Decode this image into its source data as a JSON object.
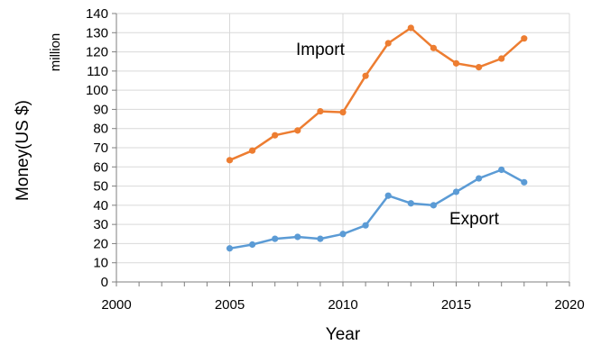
{
  "chart_data": {
    "type": "line",
    "xlabel": "Year",
    "ylabel": "Money(US $)",
    "yunit": "million",
    "xlim": [
      2000,
      2020
    ],
    "ylim": [
      0,
      140
    ],
    "xticks": [
      2000,
      2005,
      2010,
      2015,
      2020
    ],
    "yticks": [
      0,
      10,
      20,
      30,
      40,
      50,
      60,
      70,
      80,
      90,
      100,
      110,
      120,
      130,
      140
    ],
    "grid": true,
    "x": [
      2005,
      2006,
      2007,
      2008,
      2009,
      2010,
      2011,
      2012,
      2013,
      2014,
      2015,
      2016,
      2017,
      2018
    ],
    "series": [
      {
        "name": "Import",
        "color": "#ED7D31",
        "values": [
          63.5,
          68.5,
          76.5,
          79,
          89,
          88.5,
          107.5,
          124.5,
          132.5,
          122,
          114,
          112,
          116.5,
          127
        ]
      },
      {
        "name": "Export",
        "color": "#5B9BD5",
        "values": [
          17.5,
          19.5,
          22.5,
          23.5,
          22.5,
          25,
          29.5,
          45,
          41,
          40,
          47,
          54,
          58.5,
          52
        ]
      }
    ]
  }
}
